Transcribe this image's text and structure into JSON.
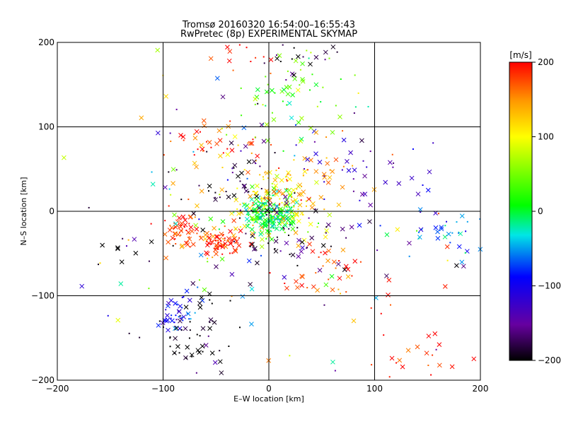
{
  "chart_data": {
    "type": "scatter",
    "title_line1": "Tromsø 20160320 16:54:00–16:55:43",
    "title_line2": "RwPretec (8p) EXPERIMENTAL SKYMAP",
    "xlabel": "E–W location [km]",
    "ylabel": "N–S location [km]",
    "xlim": [
      -200,
      200
    ],
    "ylim": [
      -200,
      200
    ],
    "grid": true,
    "x_ticks": [
      "−200",
      "−100",
      "0",
      "100",
      "200"
    ],
    "y_ticks": [
      "−200",
      "−100",
      "0",
      "100",
      "200"
    ],
    "colorbar": {
      "label": "[m/s]",
      "range": [
        -200,
        200
      ],
      "ticks": [
        "−200",
        "−100",
        "0",
        "100",
        "200"
      ],
      "colormap": "rainbow (black → purple → blue → cyan → green → yellow → orange → red)"
    },
    "markers": [
      "x",
      "dot"
    ],
    "clusters": [
      {
        "x": 0,
        "y": -5,
        "sx": 12,
        "sy": 12,
        "n": 190,
        "v": 0
      },
      {
        "x": 5,
        "y": 10,
        "sx": 25,
        "sy": 22,
        "n": 110,
        "v": 110
      },
      {
        "x": -45,
        "y": -38,
        "sx": 10,
        "sy": 7,
        "n": 70,
        "v": 190
      },
      {
        "x": -80,
        "y": -20,
        "sx": 10,
        "sy": 12,
        "n": 55,
        "v": 185
      },
      {
        "x": -50,
        "y": 80,
        "sx": 18,
        "sy": 12,
        "n": 35,
        "v": 180
      },
      {
        "x": 30,
        "y": 40,
        "sx": 25,
        "sy": 18,
        "n": 50,
        "v": 150
      },
      {
        "x": 20,
        "y": 140,
        "sx": 25,
        "sy": 25,
        "n": 55,
        "v": 40
      },
      {
        "x": -85,
        "y": -125,
        "sx": 10,
        "sy": 12,
        "n": 45,
        "v": -90
      },
      {
        "x": -70,
        "y": -150,
        "sx": 20,
        "sy": 25,
        "n": 55,
        "v": -200
      },
      {
        "x": 170,
        "y": -25,
        "sx": 22,
        "sy": 12,
        "n": 35,
        "v": -60
      },
      {
        "x": 100,
        "y": 40,
        "sx": 35,
        "sy": 20,
        "n": 35,
        "v": -130
      },
      {
        "x": 60,
        "y": -80,
        "sx": 25,
        "sy": 25,
        "n": 45,
        "v": 175
      },
      {
        "x": 25,
        "y": -40,
        "sx": 30,
        "sy": 20,
        "n": 50,
        "v": -180
      },
      {
        "x": -25,
        "y": 30,
        "sx": 25,
        "sy": 25,
        "n": 50,
        "v": -190
      },
      {
        "x": 0,
        "y": 0,
        "sx": 100,
        "sy": 100,
        "n": 150,
        "v": 0,
        "v_random": true
      },
      {
        "x": 150,
        "y": -180,
        "sx": 25,
        "sy": 18,
        "n": 20,
        "v": 200
      },
      {
        "x": -130,
        "y": -50,
        "sx": 20,
        "sy": 12,
        "n": 12,
        "v": -200
      },
      {
        "x": 25,
        "y": 180,
        "sx": 20,
        "sy": 10,
        "n": 15,
        "v": -200
      },
      {
        "x": -25,
        "y": 185,
        "sx": 15,
        "sy": 10,
        "n": 12,
        "v": 190
      }
    ]
  }
}
